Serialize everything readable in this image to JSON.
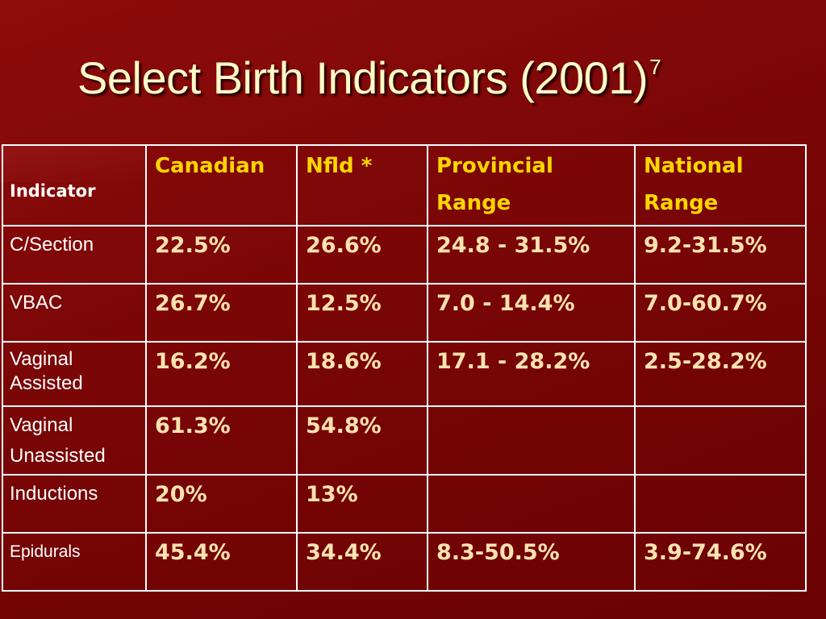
{
  "slide": {
    "title": "Select Birth Indicators (2001)",
    "title_superscript": "7"
  },
  "table": {
    "header": {
      "indicator": "Indicator",
      "canadian": "Canadian",
      "nfld": "Nfld *",
      "provincial_line1": "Provincial",
      "provincial_line2": "Range",
      "national_line1": "National",
      "national_line2": "Range"
    },
    "rows": [
      {
        "indicator_line1": "C/Section",
        "indicator_line2": "",
        "canadian": "22.5%",
        "nfld": "26.6%",
        "provincial": "24.8 - 31.5%",
        "national": "9.2-31.5%"
      },
      {
        "indicator_line1": "VBAC",
        "indicator_line2": "",
        "canadian": "26.7%",
        "nfld": "12.5%",
        "provincial": "7.0 - 14.4%",
        "national": "7.0-60.7%"
      },
      {
        "indicator_line1": "Vaginal",
        "indicator_line2": "Assisted",
        "canadian": "16.2%",
        "nfld": "18.6%",
        "provincial": "17.1 - 28.2%",
        "national": "2.5-28.2%"
      },
      {
        "indicator_line1": "Vaginal",
        "indicator_line2": "Unassisted",
        "canadian": "61.3%",
        "nfld": "54.8%",
        "provincial": "",
        "national": ""
      },
      {
        "indicator_line1": "Inductions",
        "indicator_line2": "",
        "canadian": "20%",
        "nfld": "13%",
        "provincial": "",
        "national": ""
      },
      {
        "indicator_line1": "Epidurals",
        "indicator_line2": "",
        "canadian": "45.4%",
        "nfld": "34.4%",
        "provincial": "8.3-50.5%",
        "national": "3.9-74.6%"
      }
    ]
  },
  "colors": {
    "background": "#7a0606",
    "title": "#fffbc8",
    "header_text": "#ffd700",
    "value_text": "#ffe2b0",
    "grid": "#ffffff"
  }
}
